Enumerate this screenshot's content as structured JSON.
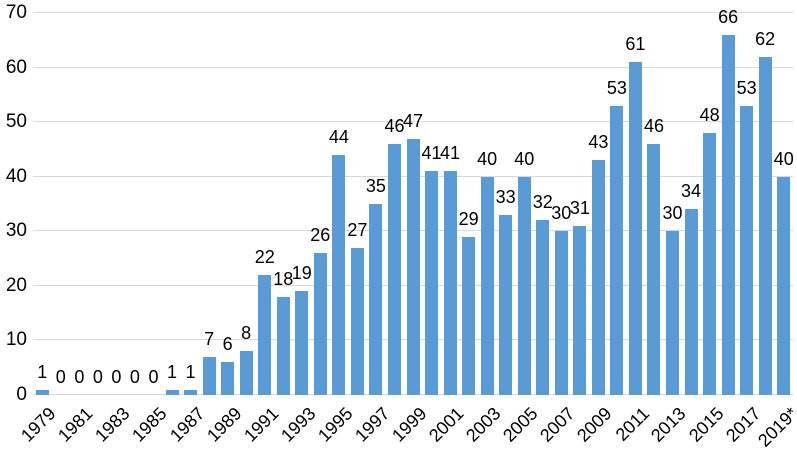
{
  "chart_data": {
    "type": "bar",
    "title": "",
    "xlabel": "",
    "ylabel": "",
    "categories": [
      "1979",
      "1980",
      "1981",
      "1982",
      "1983",
      "1984",
      "1985",
      "1986",
      "1987",
      "1988",
      "1989",
      "1990",
      "1991",
      "1992",
      "1993",
      "1994",
      "1995",
      "1996",
      "1997",
      "1998",
      "1999",
      "2000",
      "2001",
      "2002",
      "2003",
      "2004",
      "2005",
      "2006",
      "2007",
      "2008",
      "2009",
      "2010",
      "2011",
      "2012",
      "2013",
      "2014",
      "2015",
      "2016",
      "2017",
      "2018",
      "2019*"
    ],
    "values": [
      1,
      0,
      0,
      0,
      0,
      0,
      0,
      1,
      1,
      7,
      6,
      8,
      22,
      18,
      19,
      26,
      44,
      27,
      35,
      46,
      47,
      41,
      41,
      29,
      40,
      33,
      40,
      32,
      30,
      31,
      43,
      53,
      61,
      46,
      30,
      34,
      48,
      66,
      53,
      62,
      40
    ],
    "x_tick_labels": [
      "1979",
      "1981",
      "1983",
      "1985",
      "1987",
      "1989",
      "1991",
      "1993",
      "1995",
      "1997",
      "1999",
      "2001",
      "2003",
      "2005",
      "2007",
      "2009",
      "2011",
      "2013",
      "2015",
      "2017",
      "2019*"
    ],
    "x_tick_step": 2,
    "y_ticks": [
      0,
      10,
      20,
      30,
      40,
      50,
      60,
      70
    ],
    "ylim": [
      0,
      70
    ],
    "grid": "horizontal",
    "legend": "none",
    "data_labels": "above-bars",
    "x_label_rotation_deg": -45,
    "colors": {
      "bar": "#5b9bd5",
      "gridline": "#d9d9d9",
      "text": "#000000",
      "background": "#ffffff"
    }
  }
}
